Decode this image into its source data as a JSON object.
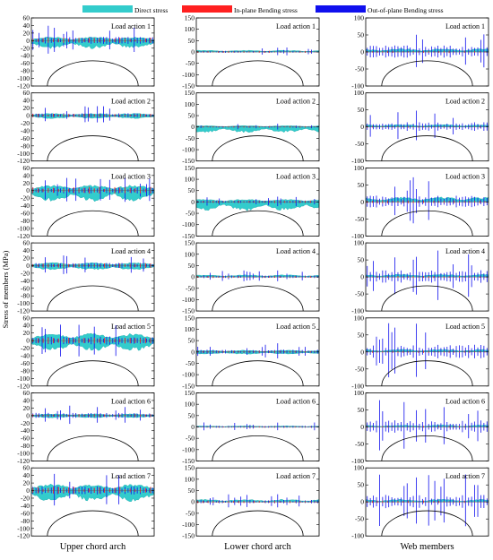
{
  "legend": [
    {
      "label": "Direct stress",
      "color": "#33cccc"
    },
    {
      "label": "In-plane Bending stress",
      "color": "#ff2020"
    },
    {
      "label": "Out-of-plane Bending stress",
      "color": "#1010ee"
    }
  ],
  "ylabel": "Stress of members (MPa)",
  "panel_labels": [
    "Load action 1",
    "Load action 2",
    "Load action 3",
    "Load action 4",
    "Load action 5",
    "Load action 6",
    "Load action 7"
  ],
  "chart_data": [
    {
      "type": "area",
      "title": "Upper chord arch",
      "xlabel": "Upper chord arch",
      "ylabel": "Stress of members (MPa)",
      "ylim": [
        -120,
        60
      ],
      "yticks": [
        60,
        40,
        20,
        0,
        -20,
        -40,
        -60,
        -80,
        -100,
        -120
      ],
      "grid": false,
      "series": [
        {
          "name": "Direct stress",
          "values": [
            [
              -22,
              10
            ],
            [
              -8,
              6
            ],
            [
              -30,
              15
            ],
            [
              -12,
              8
            ],
            [
              -28,
              20
            ],
            [
              -6,
              5
            ],
            [
              -30,
              18
            ]
          ]
        },
        {
          "name": "In-plane Bending stress",
          "values": [
            [
              8,
              6
            ],
            [
              5,
              4
            ],
            [
              10,
              8
            ],
            [
              6,
              6
            ],
            [
              8,
              8
            ],
            [
              4,
              4
            ],
            [
              10,
              8
            ]
          ]
        },
        {
          "name": "Out-of-plane Bending stress",
          "values": [
            [
              40,
              35
            ],
            [
              25,
              18
            ],
            [
              35,
              30
            ],
            [
              30,
              25
            ],
            [
              45,
              45
            ],
            [
              30,
              25
            ],
            [
              45,
              40
            ]
          ]
        }
      ]
    },
    {
      "type": "area",
      "title": "Lower chord arch",
      "xlabel": "Lower chord arch",
      "ylabel": "Stress of members (MPa)",
      "ylim": [
        -150,
        150
      ],
      "yticks": [
        150,
        100,
        50,
        0,
        -50,
        -100,
        -150
      ],
      "grid": false,
      "series": [
        {
          "name": "Direct stress",
          "values": [
            [
              10,
              8
            ],
            [
              -25,
              6
            ],
            [
              -40,
              12
            ],
            [
              20,
              10
            ],
            [
              -10,
              8
            ],
            [
              8,
              5
            ],
            [
              20,
              12
            ]
          ]
        },
        {
          "name": "In-plane Bending stress",
          "values": [
            [
              5,
              4
            ],
            [
              4,
              3
            ],
            [
              6,
              5
            ],
            [
              5,
              4
            ],
            [
              5,
              4
            ],
            [
              3,
              3
            ],
            [
              6,
              5
            ]
          ]
        },
        {
          "name": "Out-of-plane Bending stress",
          "values": [
            [
              20,
              15
            ],
            [
              15,
              12
            ],
            [
              25,
              20
            ],
            [
              30,
              20
            ],
            [
              40,
              30
            ],
            [
              20,
              15
            ],
            [
              35,
              25
            ]
          ]
        }
      ]
    },
    {
      "type": "area",
      "title": "Web members",
      "xlabel": "Web members",
      "ylabel": "Stress of members (MPa)",
      "ylim": [
        -100,
        100
      ],
      "yticks": [
        100,
        50,
        0,
        -50,
        -100
      ],
      "grid": false,
      "series": [
        {
          "name": "Direct stress",
          "values": [
            [
              15,
              10
            ],
            [
              15,
              8
            ],
            [
              25,
              15
            ],
            [
              12,
              8
            ],
            [
              10,
              8
            ],
            [
              8,
              6
            ],
            [
              12,
              8
            ]
          ]
        },
        {
          "name": "In-plane Bending stress",
          "values": [
            [
              4,
              3
            ],
            [
              3,
              2
            ],
            [
              5,
              4
            ],
            [
              3,
              3
            ],
            [
              4,
              3
            ],
            [
              3,
              2
            ],
            [
              4,
              3
            ]
          ]
        },
        {
          "name": "Out-of-plane Bending stress",
          "values": [
            [
              80,
              70
            ],
            [
              55,
              45
            ],
            [
              75,
              65
            ],
            [
              80,
              70
            ],
            [
              85,
              75
            ],
            [
              80,
              70
            ],
            [
              85,
              75
            ]
          ]
        }
      ]
    }
  ]
}
